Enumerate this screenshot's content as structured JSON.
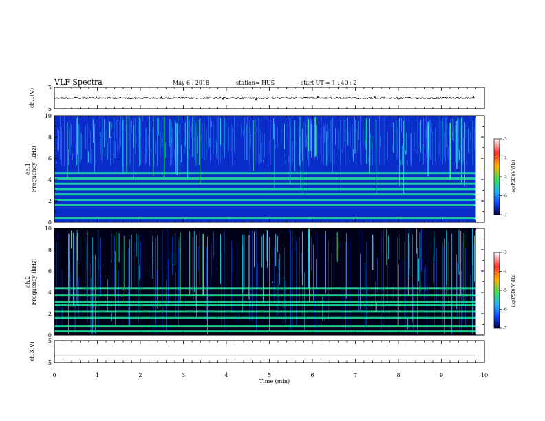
{
  "header": {
    "title": "VLF Spectra",
    "date": "May 6 , 2018",
    "station": "station= HUS",
    "start_ut": "start  UT =   1 : 40 : 2"
  },
  "chart_data": [
    {
      "type": "line",
      "panel": "ch1-waveform",
      "ylabel": "ch.1(V)",
      "ylim": [
        -5,
        5
      ],
      "yticks": [
        "5",
        "-5"
      ],
      "xlim": [
        0,
        10
      ],
      "trace_level_V": 0,
      "trace_end_min": 9.8
    },
    {
      "type": "heatmap",
      "panel": "ch1-spectrogram",
      "ylabel": "ch.1\nFrequency (kHz)",
      "ylim": [
        0,
        10
      ],
      "yticks": [
        "0",
        "2",
        "4",
        "6",
        "8",
        "10"
      ],
      "xlim": [
        0,
        10
      ],
      "data_end_min": 9.8,
      "harmonic_bands_kHz": [
        0.35,
        1.6,
        2.1,
        2.6,
        3.1,
        3.6,
        4.1,
        4.6
      ],
      "colorbar": {
        "label": "log(PSD)(V²/Hz)",
        "range": [
          -7,
          -3
        ],
        "ticks": [
          "-3",
          "-4",
          "-5",
          "-6",
          "-7"
        ]
      }
    },
    {
      "type": "heatmap",
      "panel": "ch2-spectrogram",
      "ylabel": "ch.2\nFrequency (kHz)",
      "ylim": [
        0,
        10
      ],
      "yticks": [
        "0",
        "2",
        "4",
        "6",
        "8",
        "10"
      ],
      "xlim": [
        0,
        10
      ],
      "data_end_min": 9.8,
      "harmonic_bands_kHz": [
        0.35,
        0.8,
        1.6,
        2.2,
        2.8,
        3.1,
        3.7,
        4.4
      ],
      "colorbar": {
        "label": "log(PSD)(V²/Hz)",
        "range": [
          -7,
          -3
        ],
        "ticks": [
          "-3",
          "-4",
          "-5",
          "-6",
          "-7"
        ]
      }
    },
    {
      "type": "line",
      "panel": "ch3-waveform",
      "ylabel": "ch.3(V)",
      "ylim": [
        -5,
        5
      ],
      "yticks": [
        "5",
        "-5"
      ],
      "xlim": [
        0,
        10
      ],
      "trace_level_V": -2,
      "trace_end_min": 9.8
    }
  ],
  "xaxis": {
    "label": "Time  (min)",
    "ticks": [
      "0",
      "1",
      "2",
      "3",
      "4",
      "5",
      "6",
      "7",
      "8",
      "9",
      "10"
    ]
  },
  "colors": {
    "background": "#ffffff",
    "spectro_bg_ch1": "#0a2cc8",
    "spectro_bg_ch2": "#000018",
    "band": "#22e6a0",
    "colormap": [
      "#ffffff",
      "#ff3030",
      "#ffb000",
      "#30e060",
      "#20b0ff",
      "#1040ff",
      "#000040"
    ]
  }
}
